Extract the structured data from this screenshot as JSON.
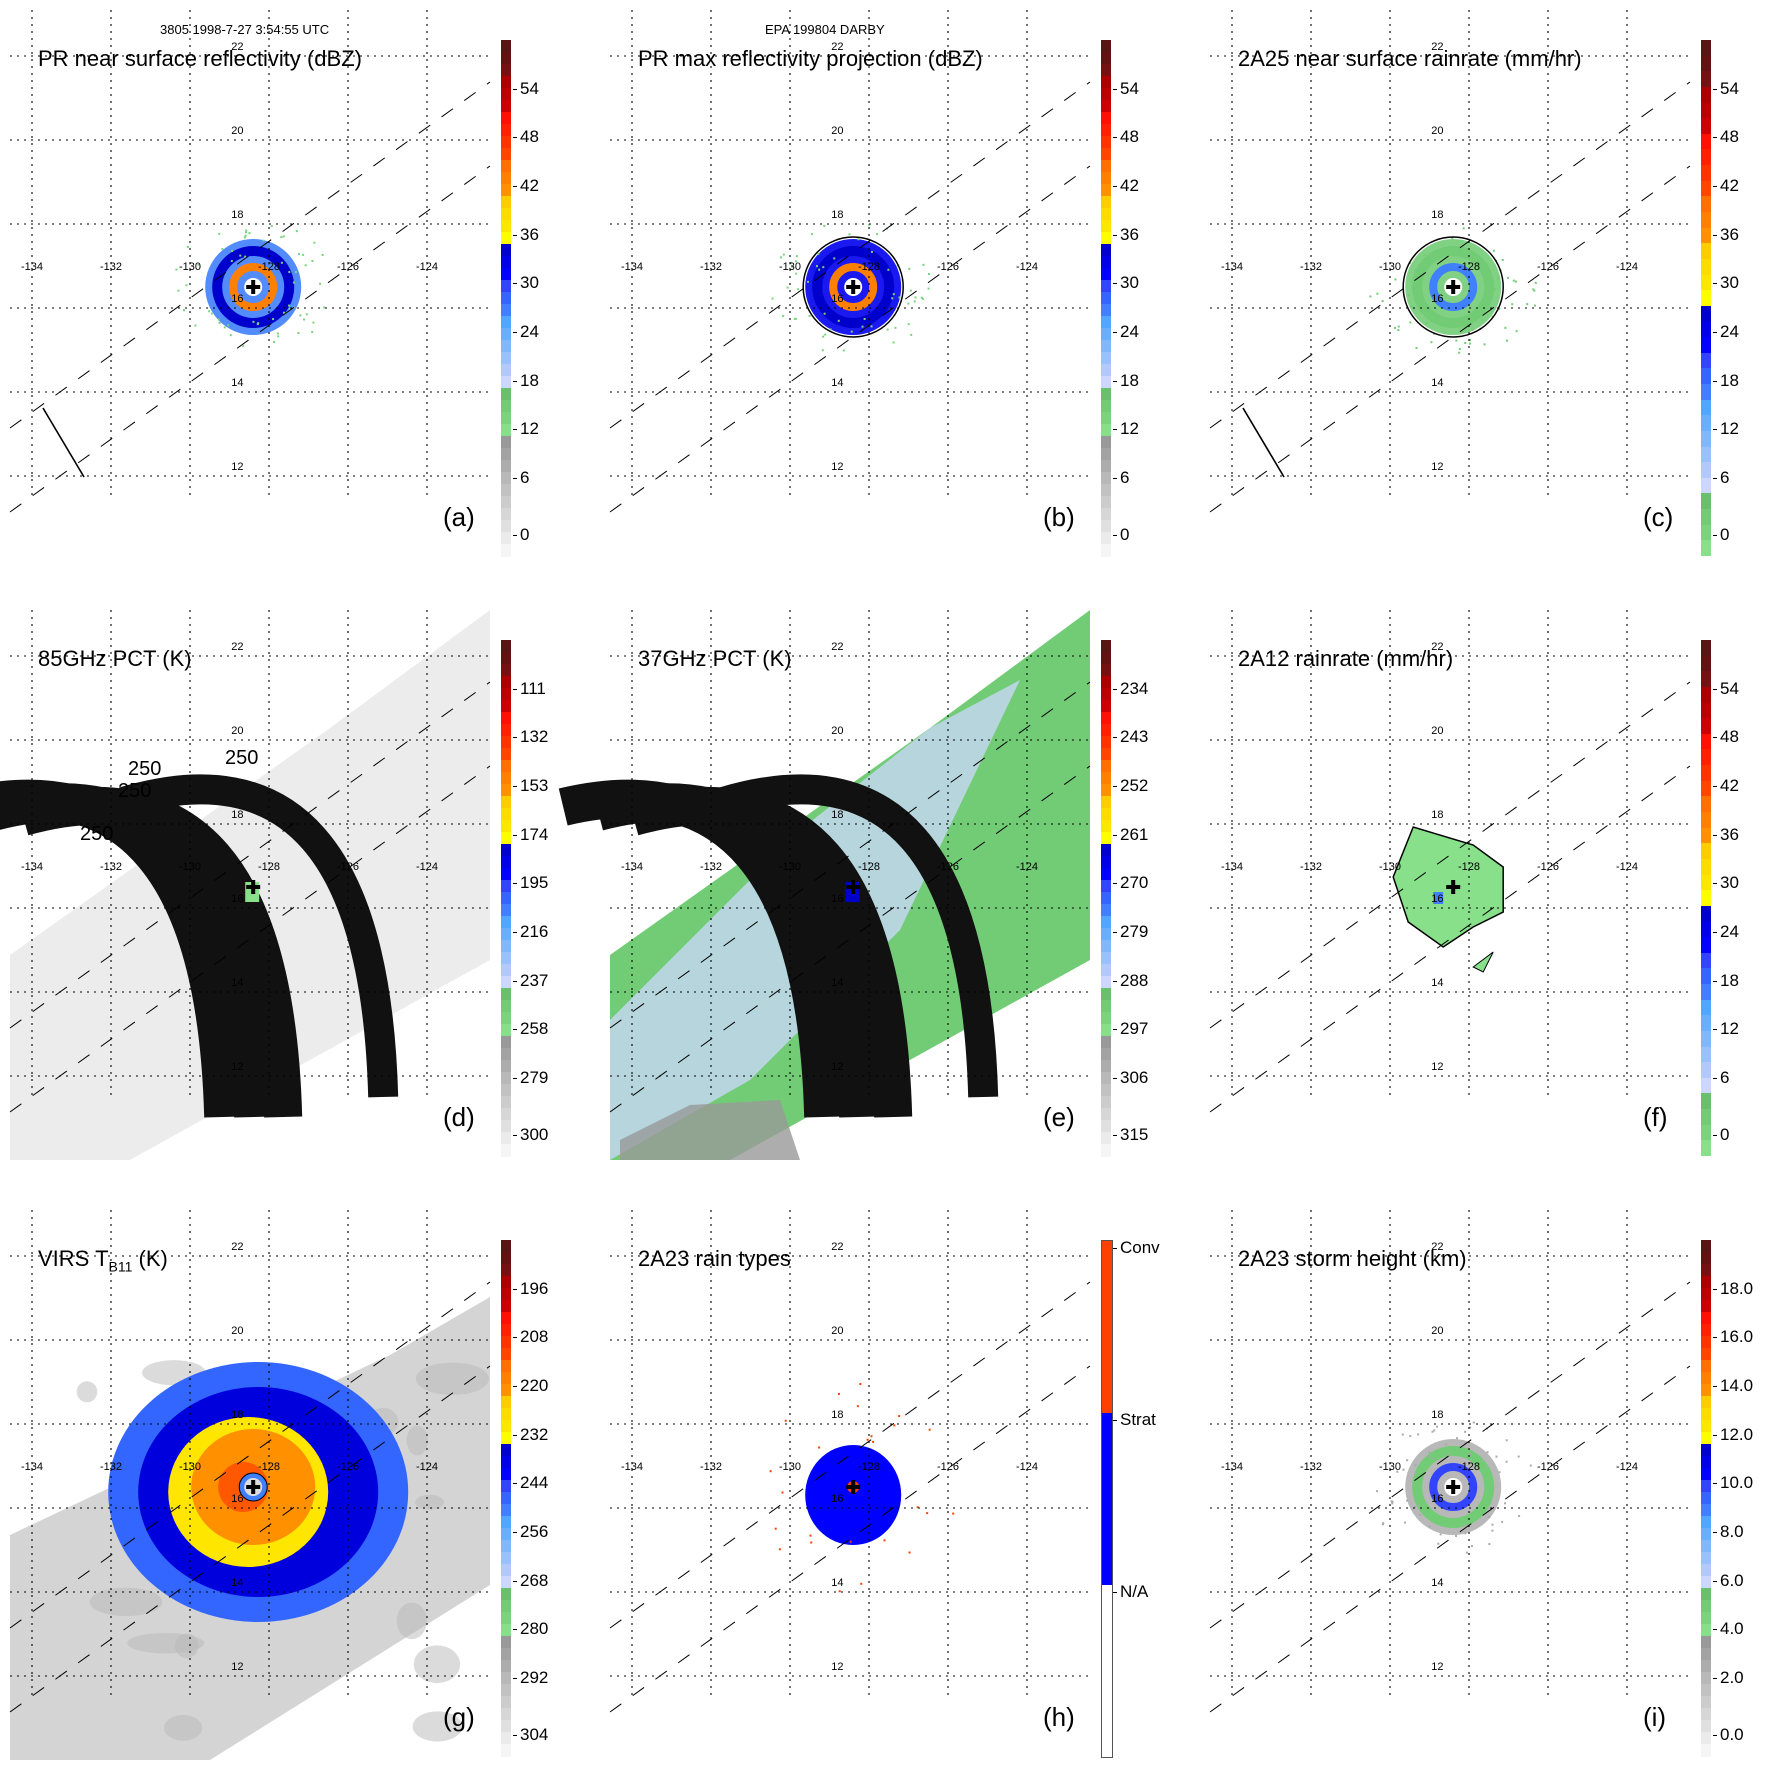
{
  "header": {
    "orbit_time": "3805 1998-7-27 3:54:55 UTC",
    "storm": "EPA 199804 DARBY"
  },
  "chart_data": [
    {
      "type": "heatmap",
      "id": "a",
      "title": "PR near surface reflectivity (dBZ)",
      "panel_label": "(a)",
      "colorbar": {
        "ticks": [
          "54",
          "48",
          "42",
          "36",
          "30",
          "24",
          "18",
          "12",
          "6",
          "0"
        ],
        "range": [
          0,
          60
        ],
        "scheme": "standard"
      },
      "grid": true,
      "lon_ticks": [
        "-134",
        "-132",
        "-130",
        "-128",
        "-126",
        "-124"
      ],
      "lat_ticks": [
        "22",
        "20",
        "18",
        "16",
        "14",
        "12"
      ],
      "storm_center": {
        "lon": -128.4,
        "lat": 16.5
      },
      "storm": {
        "kind": "pr_reflectivity",
        "extent": "small"
      },
      "swath_edge_line": true
    },
    {
      "type": "heatmap",
      "id": "b",
      "title": "PR max reflectivity projection (dBZ)",
      "panel_label": "(b)",
      "colorbar": {
        "ticks": [
          "54",
          "48",
          "42",
          "36",
          "30",
          "24",
          "18",
          "12",
          "6",
          "0"
        ],
        "range": [
          0,
          60
        ],
        "scheme": "standard"
      },
      "grid": true,
      "lon_ticks": [
        "-134",
        "-132",
        "-130",
        "-128",
        "-126",
        "-124"
      ],
      "lat_ticks": [
        "22",
        "20",
        "18",
        "16",
        "14",
        "12"
      ],
      "storm_center": {
        "lon": -128.4,
        "lat": 16.5
      },
      "storm": {
        "kind": "pr_maxproj",
        "extent": "small"
      },
      "swath_edge_line": false
    },
    {
      "type": "heatmap",
      "id": "c",
      "title": "2A25 near surface rainrate (mm/hr)",
      "panel_label": "(c)",
      "colorbar": {
        "ticks": [
          "54",
          "48",
          "42",
          "36",
          "30",
          "24",
          "18",
          "12",
          "6",
          "0"
        ],
        "range": [
          0,
          60
        ],
        "scheme": "rain"
      },
      "grid": true,
      "lon_ticks": [
        "-134",
        "-132",
        "-130",
        "-128",
        "-126",
        "-124"
      ],
      "lat_ticks": [
        "22",
        "20",
        "18",
        "16",
        "14",
        "12"
      ],
      "storm_center": {
        "lon": -128.4,
        "lat": 16.5
      },
      "storm": {
        "kind": "pr_rain",
        "extent": "small"
      },
      "swath_edge_line": true
    },
    {
      "type": "heatmap",
      "id": "d",
      "title": "85GHz PCT (K)",
      "panel_label": "(d)",
      "colorbar": {
        "ticks": [
          "111",
          "132",
          "153",
          "174",
          "195",
          "216",
          "237",
          "258",
          "279",
          "300"
        ],
        "range": [
          90,
          300
        ],
        "scheme": "standard"
      },
      "grid": true,
      "lon_ticks": [
        "-134",
        "-132",
        "-130",
        "-128",
        "-126",
        "-124"
      ],
      "lat_ticks": [
        "22",
        "20",
        "18",
        "16",
        "14",
        "12"
      ],
      "storm_center": {
        "lon": -128.4,
        "lat": 16.5
      },
      "contour_label": "250",
      "storm": {
        "kind": "pct85",
        "extent": "tmi_swath"
      }
    },
    {
      "type": "heatmap",
      "id": "e",
      "title": "37GHz PCT (K)",
      "panel_label": "(e)",
      "colorbar": {
        "ticks": [
          "234",
          "243",
          "252",
          "261",
          "270",
          "279",
          "288",
          "297",
          "306",
          "315"
        ],
        "range": [
          225,
          315
        ],
        "scheme": "standard"
      },
      "grid": true,
      "lon_ticks": [
        "-134",
        "-132",
        "-130",
        "-128",
        "-126",
        "-124"
      ],
      "lat_ticks": [
        "22",
        "20",
        "18",
        "16",
        "14",
        "12"
      ],
      "storm_center": {
        "lon": -128.4,
        "lat": 16.5
      },
      "storm": {
        "kind": "pct37",
        "extent": "tmi_swath"
      }
    },
    {
      "type": "heatmap",
      "id": "f",
      "title": "2A12 rainrate (mm/hr)",
      "panel_label": "(f)",
      "colorbar": {
        "ticks": [
          "54",
          "48",
          "42",
          "36",
          "30",
          "24",
          "18",
          "12",
          "6",
          "0"
        ],
        "range": [
          0,
          60
        ],
        "scheme": "rain"
      },
      "grid": true,
      "lon_ticks": [
        "-134",
        "-132",
        "-130",
        "-128",
        "-126",
        "-124"
      ],
      "lat_ticks": [
        "22",
        "20",
        "18",
        "16",
        "14",
        "12"
      ],
      "storm_center": {
        "lon": -128.4,
        "lat": 16.5
      },
      "storm": {
        "kind": "tmi_rain",
        "extent": "medium"
      }
    },
    {
      "type": "heatmap",
      "id": "g",
      "title": "VIRS T",
      "title_sub": "B11",
      "title_suffix": " (K)",
      "panel_label": "(g)",
      "colorbar": {
        "ticks": [
          "196",
          "208",
          "220",
          "232",
          "244",
          "256",
          "268",
          "280",
          "292",
          "304"
        ],
        "range": [
          184,
          304
        ],
        "scheme": "standard"
      },
      "grid": true,
      "lon_ticks": [
        "-134",
        "-132",
        "-130",
        "-128",
        "-126",
        "-124"
      ],
      "lat_ticks": [
        "22",
        "20",
        "18",
        "16",
        "14",
        "12"
      ],
      "storm_center": {
        "lon": -128.4,
        "lat": 16.5
      },
      "storm": {
        "kind": "virs",
        "extent": "large"
      }
    },
    {
      "type": "heatmap",
      "id": "h",
      "title": "2A23 rain types",
      "panel_label": "(h)",
      "colorbar": {
        "categorical": true,
        "categories": [
          "Conv",
          "Strat",
          "N/A"
        ],
        "colors": [
          "#ff4000",
          "#0000ff",
          "#ffffff"
        ]
      },
      "grid": true,
      "lon_ticks": [
        "-134",
        "-132",
        "-130",
        "-128",
        "-126",
        "-124"
      ],
      "lat_ticks": [
        "22",
        "20",
        "18",
        "16",
        "14",
        "12"
      ],
      "storm_center": {
        "lon": -128.4,
        "lat": 16.5
      },
      "storm": {
        "kind": "raintype",
        "extent": "small"
      }
    },
    {
      "type": "heatmap",
      "id": "i",
      "title": "2A23 storm height (km)",
      "panel_label": "(i)",
      "colorbar": {
        "ticks": [
          "18.0",
          "16.0",
          "14.0",
          "12.0",
          "10.0",
          "8.0",
          "6.0",
          "4.0",
          "2.0",
          "0.0"
        ],
        "range": [
          0,
          20
        ],
        "scheme": "standard"
      },
      "grid": true,
      "lon_ticks": [
        "-134",
        "-132",
        "-130",
        "-128",
        "-126",
        "-124"
      ],
      "lat_ticks": [
        "22",
        "20",
        "18",
        "16",
        "14",
        "12"
      ],
      "storm_center": {
        "lon": -128.4,
        "lat": 16.5
      },
      "storm": {
        "kind": "height",
        "extent": "small"
      }
    }
  ]
}
